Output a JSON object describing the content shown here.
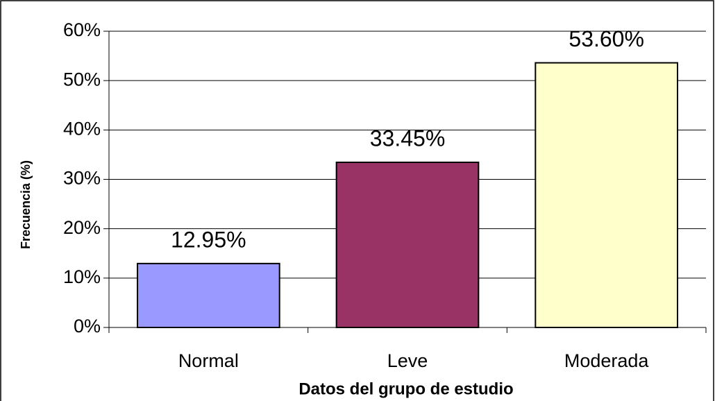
{
  "chart_data": {
    "type": "bar",
    "x_label": "Datos del grupo de estudio",
    "y_label": "Frecuencia (%)",
    "categories": [
      "Normal",
      "Leve",
      "Moderada"
    ],
    "values": [
      12.95,
      33.45,
      53.6
    ],
    "value_labels": [
      "12.95%",
      "33.45%",
      "53.60%"
    ],
    "colors": [
      "#9999ff",
      "#993366",
      "#ffffcc"
    ],
    "ylim": [
      0,
      60
    ],
    "yticks": [
      {
        "value": 0,
        "label": "0%"
      },
      {
        "value": 10,
        "label": "10%"
      },
      {
        "value": 20,
        "label": "20%"
      },
      {
        "value": 30,
        "label": "30%"
      },
      {
        "value": 40,
        "label": "40%"
      },
      {
        "value": 50,
        "label": "50%"
      },
      {
        "value": 60,
        "label": "60%"
      }
    ],
    "grid": true
  }
}
